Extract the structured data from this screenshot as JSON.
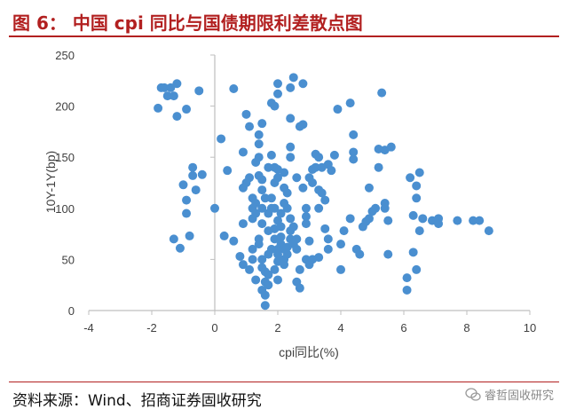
{
  "title": "图 6： 中国 cpi 同比与国债期限利差散点图",
  "source": "资料来源：Wind、招商证券固收研究",
  "watermark": "睿哲固收研究",
  "colors": {
    "title": "#b22020",
    "point": "#4a8fd0",
    "axis": "#bfbfbf"
  },
  "chart_data": {
    "type": "scatter",
    "xlabel": "cpi同比(%)",
    "ylabel": "10Y-1Y(bp)",
    "xlim": [
      -4,
      10
    ],
    "ylim": [
      0,
      250
    ],
    "xticks": [
      -4,
      -2,
      0,
      2,
      4,
      6,
      8,
      10
    ],
    "yticks": [
      0,
      50,
      100,
      150,
      200,
      250
    ],
    "grid": false,
    "points": [
      [
        -1.7,
        218
      ],
      [
        -1.6,
        218
      ],
      [
        -1.5,
        210
      ],
      [
        -1.4,
        218
      ],
      [
        -1.3,
        210
      ],
      [
        -1.2,
        222
      ],
      [
        -1.8,
        198
      ],
      [
        -1.2,
        190
      ],
      [
        -0.9,
        197
      ],
      [
        -0.5,
        215
      ],
      [
        -0.4,
        133
      ],
      [
        -0.7,
        140
      ],
      [
        -0.7,
        132
      ],
      [
        -1.0,
        123
      ],
      [
        -0.6,
        118
      ],
      [
        -0.9,
        108
      ],
      [
        -0.9,
        95
      ],
      [
        -1.3,
        70
      ],
      [
        -1.1,
        61
      ],
      [
        -0.8,
        73
      ],
      [
        0.0,
        100
      ],
      [
        0.2,
        168
      ],
      [
        0.4,
        137
      ],
      [
        0.3,
        73
      ],
      [
        0.6,
        217
      ],
      [
        0.6,
        68
      ],
      [
        0.8,
        53
      ],
      [
        0.9,
        45
      ],
      [
        0.9,
        85
      ],
      [
        0.9,
        120
      ],
      [
        0.9,
        155
      ],
      [
        1.0,
        192
      ],
      [
        1.1,
        180
      ],
      [
        1.1,
        130
      ],
      [
        1.0,
        125
      ],
      [
        1.2,
        110
      ],
      [
        1.2,
        100
      ],
      [
        1.3,
        95
      ],
      [
        1.2,
        60
      ],
      [
        1.2,
        90
      ],
      [
        1.3,
        105
      ],
      [
        1.3,
        145
      ],
      [
        1.4,
        163
      ],
      [
        1.4,
        150
      ],
      [
        1.4,
        172
      ],
      [
        1.5,
        183
      ],
      [
        1.4,
        132
      ],
      [
        1.5,
        128
      ],
      [
        1.5,
        118
      ],
      [
        1.5,
        100
      ],
      [
        1.5,
        85
      ],
      [
        1.4,
        70
      ],
      [
        1.4,
        65
      ],
      [
        1.5,
        50
      ],
      [
        1.5,
        42
      ],
      [
        1.6,
        38
      ],
      [
        1.6,
        28
      ],
      [
        1.5,
        20
      ],
      [
        1.6,
        15
      ],
      [
        1.6,
        5
      ],
      [
        1.7,
        25
      ],
      [
        1.7,
        55
      ],
      [
        1.7,
        78
      ],
      [
        1.7,
        95
      ],
      [
        1.8,
        110
      ],
      [
        1.7,
        140
      ],
      [
        1.8,
        152
      ],
      [
        1.8,
        203
      ],
      [
        1.9,
        200
      ],
      [
        2.0,
        222
      ],
      [
        2.0,
        212
      ],
      [
        1.9,
        140
      ],
      [
        1.9,
        125
      ],
      [
        2.0,
        138
      ],
      [
        2.0,
        130
      ],
      [
        1.9,
        100
      ],
      [
        2.0,
        88
      ],
      [
        1.9,
        80
      ],
      [
        1.9,
        70
      ],
      [
        2.0,
        60
      ],
      [
        2.0,
        55
      ],
      [
        2.0,
        48
      ],
      [
        2.1,
        65
      ],
      [
        2.1,
        72
      ],
      [
        2.1,
        82
      ],
      [
        2.2,
        60
      ],
      [
        2.2,
        50
      ],
      [
        2.2,
        45
      ],
      [
        2.3,
        55
      ],
      [
        2.3,
        62
      ],
      [
        2.4,
        70
      ],
      [
        2.4,
        78
      ],
      [
        2.4,
        90
      ],
      [
        2.2,
        120
      ],
      [
        2.2,
        135
      ],
      [
        2.3,
        100
      ],
      [
        2.3,
        115
      ],
      [
        2.4,
        150
      ],
      [
        2.4,
        160
      ],
      [
        2.4,
        188
      ],
      [
        2.5,
        228
      ],
      [
        2.4,
        218
      ],
      [
        2.5,
        82
      ],
      [
        2.5,
        65
      ],
      [
        2.6,
        70
      ],
      [
        2.6,
        60
      ],
      [
        2.7,
        40
      ],
      [
        2.6,
        28
      ],
      [
        2.7,
        22
      ],
      [
        2.7,
        180
      ],
      [
        2.8,
        182
      ],
      [
        2.8,
        222
      ],
      [
        2.8,
        120
      ],
      [
        2.9,
        100
      ],
      [
        2.9,
        92
      ],
      [
        2.9,
        50
      ],
      [
        3.0,
        45
      ],
      [
        3.0,
        68
      ],
      [
        3.0,
        130
      ],
      [
        3.1,
        138
      ],
      [
        3.1,
        125
      ],
      [
        3.2,
        153
      ],
      [
        3.2,
        140
      ],
      [
        3.3,
        150
      ],
      [
        3.3,
        118
      ],
      [
        3.3,
        100
      ],
      [
        3.4,
        140
      ],
      [
        3.4,
        115
      ],
      [
        3.5,
        108
      ],
      [
        3.5,
        80
      ],
      [
        3.6,
        70
      ],
      [
        3.6,
        60
      ],
      [
        3.3,
        52
      ],
      [
        3.6,
        143
      ],
      [
        3.7,
        137
      ],
      [
        3.8,
        152
      ],
      [
        3.9,
        197
      ],
      [
        4.0,
        65
      ],
      [
        4.0,
        40
      ],
      [
        4.1,
        78
      ],
      [
        4.3,
        90
      ],
      [
        4.3,
        203
      ],
      [
        4.4,
        172
      ],
      [
        4.4,
        155
      ],
      [
        4.4,
        148
      ],
      [
        4.5,
        60
      ],
      [
        4.6,
        55
      ],
      [
        4.7,
        82
      ],
      [
        4.8,
        87
      ],
      [
        4.9,
        90
      ],
      [
        4.9,
        120
      ],
      [
        5.0,
        97
      ],
      [
        5.1,
        100
      ],
      [
        5.2,
        158
      ],
      [
        5.2,
        140
      ],
      [
        5.3,
        213
      ],
      [
        5.4,
        105
      ],
      [
        5.4,
        100
      ],
      [
        5.4,
        157
      ],
      [
        5.5,
        88
      ],
      [
        5.5,
        55
      ],
      [
        5.6,
        160
      ],
      [
        6.1,
        20
      ],
      [
        6.1,
        32
      ],
      [
        6.2,
        130
      ],
      [
        6.3,
        93
      ],
      [
        6.3,
        57
      ],
      [
        6.4,
        122
      ],
      [
        6.4,
        110
      ],
      [
        6.4,
        40
      ],
      [
        6.5,
        135
      ],
      [
        6.5,
        78
      ],
      [
        6.6,
        90
      ],
      [
        6.9,
        88
      ],
      [
        7.1,
        90
      ],
      [
        7.1,
        85
      ],
      [
        7.7,
        88
      ],
      [
        8.2,
        88
      ],
      [
        8.4,
        88
      ],
      [
        8.7,
        78
      ],
      [
        1.3,
        30
      ],
      [
        1.7,
        35
      ],
      [
        2.0,
        30
      ],
      [
        1.9,
        40
      ],
      [
        1.8,
        60
      ],
      [
        2.1,
        95
      ],
      [
        1.6,
        110
      ],
      [
        2.2,
        105
      ],
      [
        1.8,
        100
      ],
      [
        2.6,
        130
      ],
      [
        2.9,
        85
      ],
      [
        3.1,
        50
      ],
      [
        1.1,
        40
      ],
      [
        1.2,
        50
      ]
    ]
  }
}
